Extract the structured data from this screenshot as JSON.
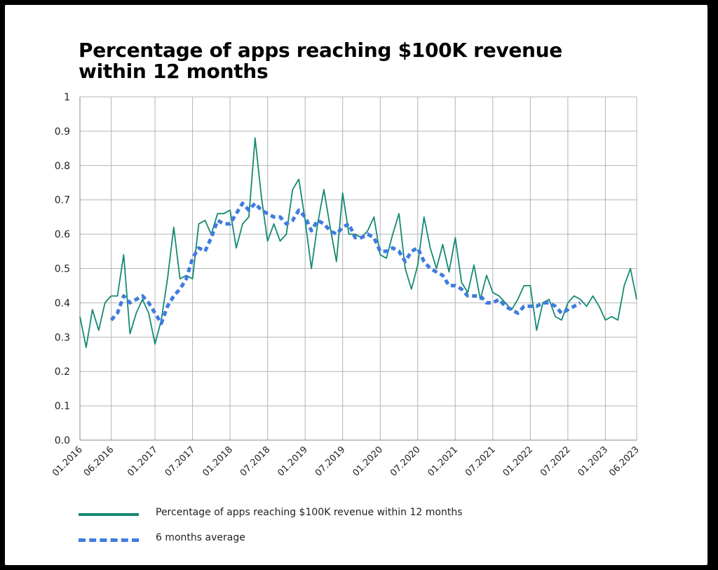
{
  "title": "Percentage of apps reaching $100K revenue within 12 months",
  "colors": {
    "series": "#138a72",
    "average": "#3f7be0",
    "grid": "#b4b4b4",
    "axis": "#888888"
  },
  "chart_data": {
    "type": "line",
    "title": "Percentage of apps reaching $100K revenue within 12 months",
    "xlabel": "",
    "ylabel": "",
    "ylim": [
      0,
      1
    ],
    "yticks": [
      "0.0",
      "0.1",
      "0.2",
      "0.3",
      "0.4",
      "0.5",
      "0.6",
      "0.7",
      "0.8",
      "0.9",
      "1"
    ],
    "xticks": [
      "01.2016",
      "06.2016",
      "01.2017",
      "07.2017",
      "01.2018",
      "07.2018",
      "01.2019",
      "07.2019",
      "01.2020",
      "07.2020",
      "01.2021",
      "07.2021",
      "01.2022",
      "07.2022",
      "01.2023",
      "06.2023"
    ],
    "grid": true,
    "legend_position": "bottom",
    "x_range": [
      "2016-01",
      "2023-06"
    ],
    "series": [
      {
        "name": "Percentage of apps reaching $100K revenue within 12 months",
        "style": "solid",
        "start": "2016-01",
        "values": [
          0.36,
          0.27,
          0.38,
          0.32,
          0.4,
          0.42,
          0.42,
          0.54,
          0.31,
          0.37,
          0.41,
          0.37,
          0.28,
          0.35,
          0.47,
          0.62,
          0.47,
          0.48,
          0.47,
          0.63,
          0.64,
          0.6,
          0.66,
          0.66,
          0.67,
          0.56,
          0.63,
          0.65,
          0.88,
          0.71,
          0.58,
          0.63,
          0.58,
          0.6,
          0.73,
          0.76,
          0.64,
          0.5,
          0.63,
          0.73,
          0.62,
          0.52,
          0.72,
          0.6,
          0.6,
          0.59,
          0.61,
          0.65,
          0.54,
          0.53,
          0.6,
          0.66,
          0.5,
          0.44,
          0.51,
          0.65,
          0.56,
          0.5,
          0.57,
          0.49,
          0.59,
          0.46,
          0.43,
          0.51,
          0.41,
          0.48,
          0.43,
          0.42,
          0.4,
          0.38,
          0.41,
          0.45,
          0.45,
          0.32,
          0.4,
          0.41,
          0.36,
          0.35,
          0.4,
          0.42,
          0.41,
          0.39,
          0.42,
          0.39,
          0.35,
          0.36,
          0.35,
          0.45,
          0.5,
          0.41
        ]
      },
      {
        "name": "6 months average",
        "style": "dashed",
        "start": "2016-06",
        "values": [
          0.35,
          0.37,
          0.42,
          0.4,
          0.41,
          0.42,
          0.4,
          0.37,
          0.34,
          0.39,
          0.42,
          0.44,
          0.47,
          0.53,
          0.56,
          0.55,
          0.59,
          0.64,
          0.63,
          0.63,
          0.66,
          0.69,
          0.67,
          0.69,
          0.67,
          0.66,
          0.65,
          0.65,
          0.63,
          0.64,
          0.67,
          0.65,
          0.61,
          0.64,
          0.63,
          0.61,
          0.6,
          0.62,
          0.63,
          0.59,
          0.59,
          0.6,
          0.59,
          0.55,
          0.55,
          0.56,
          0.55,
          0.52,
          0.55,
          0.56,
          0.52,
          0.5,
          0.49,
          0.48,
          0.45,
          0.45,
          0.44,
          0.42,
          0.42,
          0.42,
          0.4,
          0.4,
          0.41,
          0.39,
          0.38,
          0.37,
          0.39,
          0.39,
          0.39,
          0.4,
          0.4,
          0.39,
          0.37,
          0.38,
          0.39,
          0.4
        ]
      }
    ]
  }
}
